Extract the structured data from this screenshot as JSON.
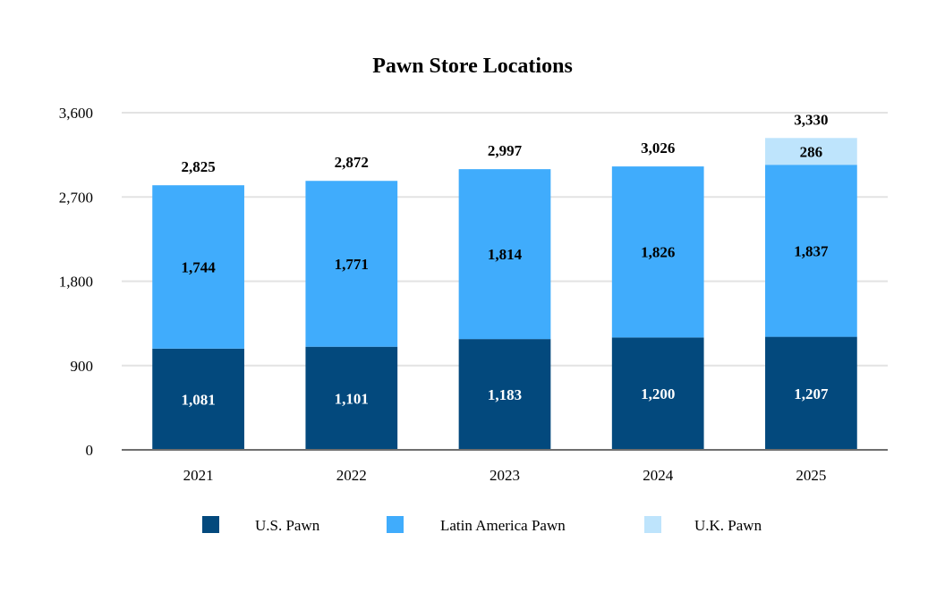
{
  "chart_data": {
    "type": "bar",
    "stacked": true,
    "title": "Pawn Store Locations",
    "xlabel": "",
    "ylabel": "",
    "categories": [
      "2021",
      "2022",
      "2023",
      "2024",
      "2025"
    ],
    "series": [
      {
        "name": "U.S. Pawn",
        "values": [
          1081,
          1101,
          1183,
          1200,
          1207
        ],
        "color": "#03497D",
        "label_color": "#ffffff"
      },
      {
        "name": "Latin America Pawn",
        "values": [
          1744,
          1771,
          1814,
          1826,
          1837
        ],
        "color": "#40ACFC",
        "label_color": "#000000"
      },
      {
        "name": "U.K. Pawn",
        "values": [
          0,
          0,
          0,
          0,
          286
        ],
        "color": "#BEE4FC",
        "label_color": "#000000"
      }
    ],
    "totals": [
      2825,
      2872,
      2997,
      3026,
      3330
    ],
    "ylim": [
      0,
      3600
    ],
    "yticks": [
      0,
      900,
      1800,
      2700,
      3600
    ],
    "grid": true,
    "legend_position": "bottom"
  }
}
